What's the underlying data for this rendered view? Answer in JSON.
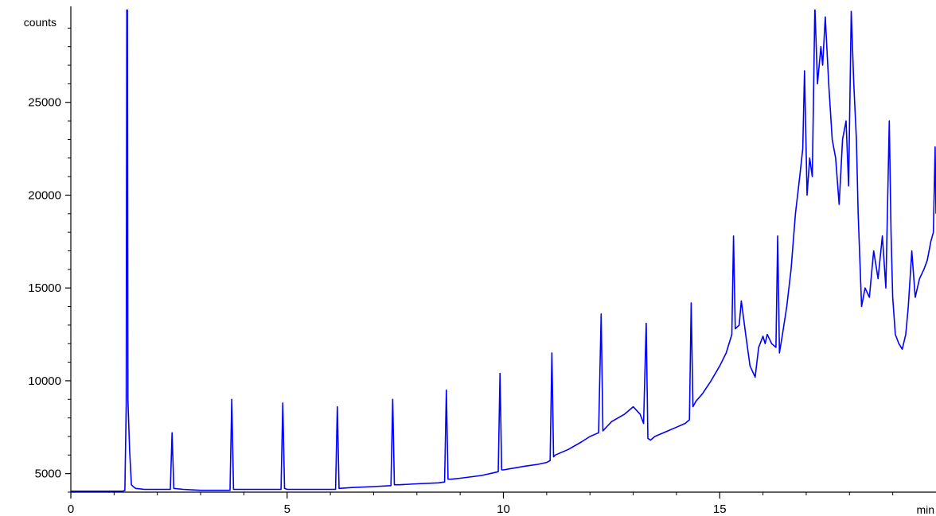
{
  "chart_data": {
    "type": "line",
    "title": "",
    "xlabel": "min",
    "ylabel": "counts",
    "xlim": [
      0,
      20
    ],
    "ylim": [
      4000,
      30000
    ],
    "x_ticks": [
      0,
      5,
      10,
      15
    ],
    "x_tick_labels": [
      "0",
      "5",
      "10",
      "15"
    ],
    "y_ticks": [
      5000,
      10000,
      15000,
      20000,
      25000
    ],
    "y_tick_labels": [
      "5000",
      "10000",
      "15000",
      "20000",
      "25000"
    ],
    "grid": false,
    "legend": "none",
    "line_color": "#0000ff",
    "series": [
      {
        "x": [
          0,
          1.2,
          1.25,
          1.28,
          1.3,
          1.32,
          1.36,
          1.4,
          1.44,
          1.5,
          1.7,
          2.0,
          2.3,
          2.34,
          2.38,
          2.6,
          3.0,
          3.5,
          3.68,
          3.72,
          3.76,
          4.0,
          4.5,
          4.86,
          4.9,
          4.94,
          5.0,
          5.5,
          6.0,
          6.12,
          6.16,
          6.2,
          6.5,
          7.0,
          7.4,
          7.44,
          7.48,
          7.52,
          7.6,
          8.0,
          8.5,
          8.64,
          8.68,
          8.72,
          8.8,
          9.0,
          9.5,
          9.88,
          9.92,
          9.96,
          10.0,
          10.5,
          10.8,
          11.0,
          11.08,
          11.12,
          11.16,
          11.2,
          11.5,
          11.8,
          12.0,
          12.2,
          12.26,
          12.3,
          12.34,
          12.5,
          12.8,
          13.0,
          13.16,
          13.24,
          13.3,
          13.34,
          13.4,
          13.5,
          13.8,
          14.0,
          14.2,
          14.3,
          14.34,
          14.38,
          14.45,
          14.6,
          14.8,
          15.0,
          15.15,
          15.28,
          15.32,
          15.36,
          15.45,
          15.5,
          15.6,
          15.7,
          15.82,
          15.9,
          16.0,
          16.05,
          16.1,
          16.2,
          16.3,
          16.34,
          16.38,
          16.45,
          16.55,
          16.65,
          16.75,
          16.85,
          16.92,
          16.96,
          17.02,
          17.08,
          17.14,
          17.2,
          17.26,
          17.34,
          17.38,
          17.44,
          17.52,
          17.6,
          17.68,
          17.76,
          17.84,
          17.92,
          17.98,
          18.04,
          18.1,
          18.16,
          18.2,
          18.28,
          18.36,
          18.46,
          18.56,
          18.66,
          18.76,
          18.84,
          18.92,
          18.96,
          19.0,
          19.06,
          19.14,
          19.22,
          19.3,
          19.36,
          19.44,
          19.52,
          19.62,
          19.72,
          19.8,
          19.88,
          19.94,
          19.98,
          20.0
        ],
        "y": [
          4050,
          4050,
          4100,
          8800,
          42000,
          9000,
          6200,
          4400,
          4300,
          4200,
          4150,
          4150,
          4150,
          7200,
          4200,
          4150,
          4100,
          4100,
          4100,
          9000,
          4150,
          4150,
          4150,
          4150,
          8800,
          4200,
          4150,
          4150,
          4150,
          4150,
          8600,
          4200,
          4250,
          4300,
          4350,
          9000,
          4400,
          4400,
          4400,
          4450,
          4500,
          4550,
          9500,
          4700,
          4700,
          4750,
          4900,
          5100,
          10400,
          5200,
          5200,
          5400,
          5500,
          5600,
          5700,
          11500,
          5900,
          6000,
          6300,
          6700,
          7000,
          7200,
          13600,
          7300,
          7400,
          7800,
          8200,
          8600,
          8200,
          7700,
          13100,
          6900,
          6800,
          7000,
          7300,
          7500,
          7700,
          7900,
          14200,
          8600,
          8900,
          9300,
          10000,
          10800,
          11500,
          12500,
          17800,
          12800,
          13000,
          14300,
          12500,
          10800,
          10200,
          11800,
          12400,
          12000,
          12500,
          12000,
          11800,
          17800,
          11500,
          12500,
          14000,
          16000,
          19000,
          21000,
          22500,
          26700,
          20000,
          22000,
          21000,
          30200,
          26000,
          28000,
          27000,
          29600,
          26000,
          23000,
          22000,
          19500,
          23000,
          24000,
          20500,
          29900,
          26000,
          23000,
          19000,
          14000,
          15000,
          14500,
          17000,
          15500,
          17800,
          15000,
          24000,
          18000,
          14500,
          12500,
          12000,
          11700,
          12500,
          14000,
          17000,
          14500,
          15500,
          16000,
          16500,
          17500,
          18000,
          22600,
          19000
        ]
      }
    ]
  }
}
